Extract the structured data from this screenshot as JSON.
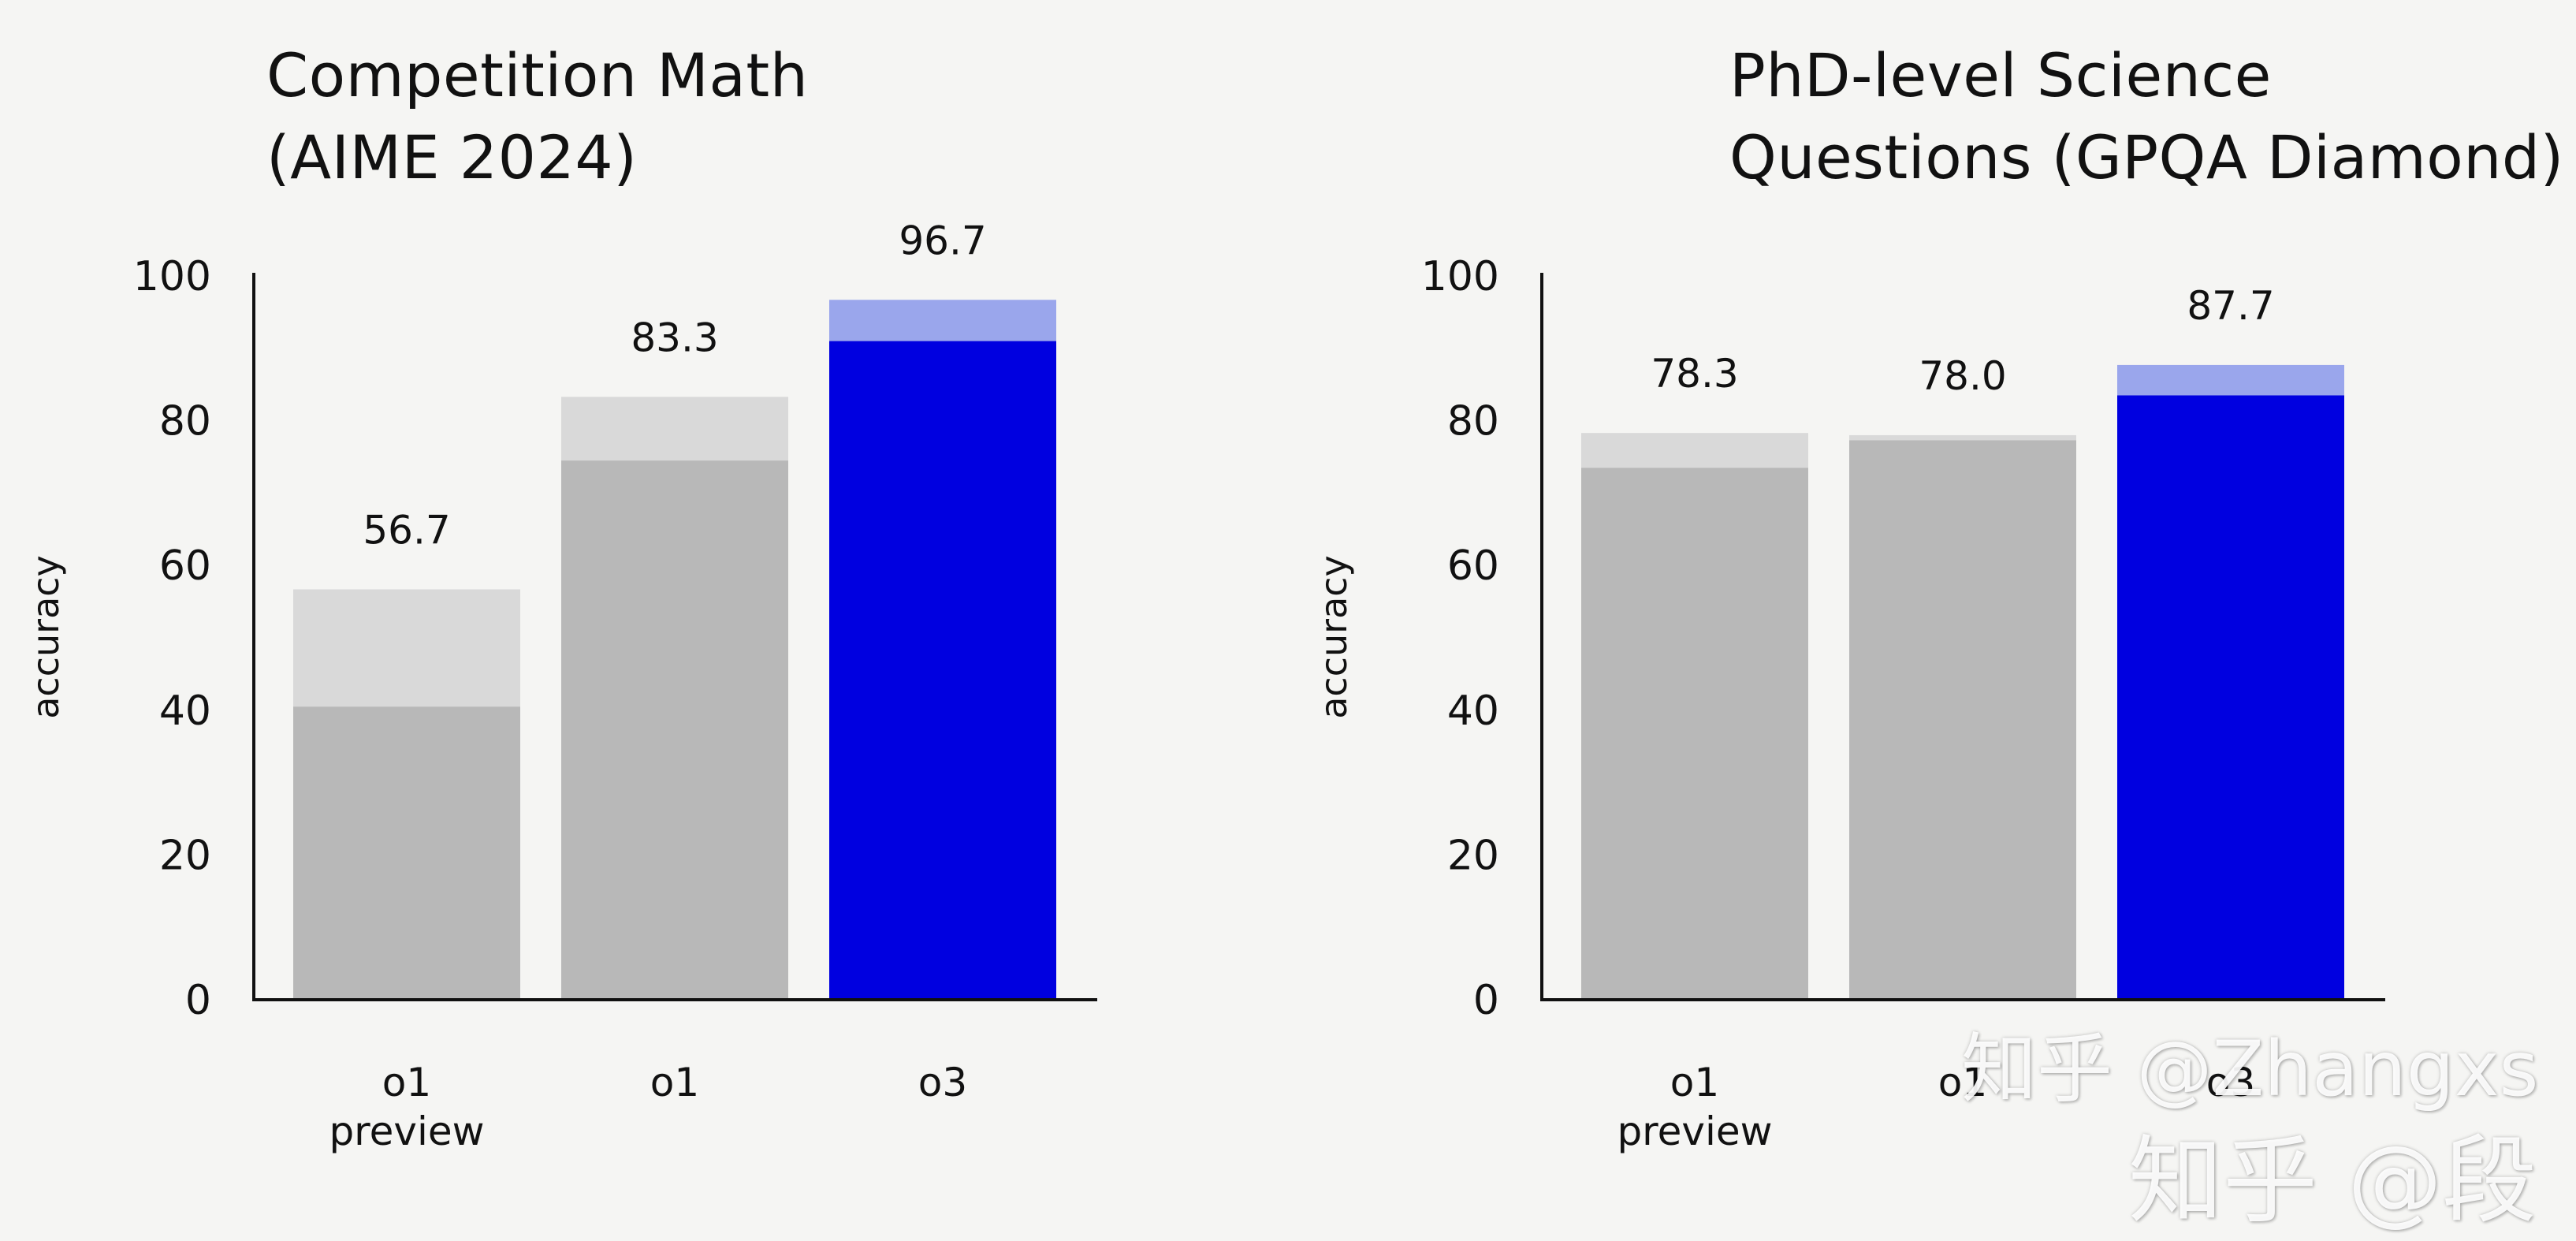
{
  "chart_data": [
    {
      "type": "bar",
      "title_lines": [
        "Competition Math",
        "(AIME 2024)"
      ],
      "ylabel": "accuracy",
      "ylim": [
        0,
        100
      ],
      "yticks": [
        0,
        20,
        40,
        60,
        80,
        100
      ],
      "categories": [
        [
          "o1",
          "preview"
        ],
        [
          "o1"
        ],
        [
          "o3"
        ]
      ],
      "values": [
        56.7,
        83.3,
        96.7
      ],
      "inner_values": [
        40.5,
        74.5,
        91
      ],
      "value_labels": [
        "56.7",
        "83.3",
        "96.7"
      ],
      "colors": {
        "gray_base": "#b8b8b8",
        "gray_top": "#d9d9d9",
        "blue_base": "#0000e0",
        "blue_top": "#9aa6ec"
      },
      "highlight_index": 2
    },
    {
      "type": "bar",
      "title_lines": [
        "PhD-level Science",
        "Questions (GPQA Diamond)"
      ],
      "ylabel": "accuracy",
      "ylim": [
        0,
        100
      ],
      "yticks": [
        0,
        20,
        40,
        60,
        80,
        100
      ],
      "categories": [
        [
          "o1",
          "preview"
        ],
        [
          "o1"
        ],
        [
          "o3"
        ]
      ],
      "values": [
        78.3,
        78.0,
        87.7
      ],
      "inner_values": [
        73.5,
        77.3,
        83.5
      ],
      "value_labels": [
        "78.3",
        "78.0",
        "87.7"
      ],
      "colors": {
        "gray_base": "#b8b8b8",
        "gray_top": "#d9d9d9",
        "blue_base": "#0000e0",
        "blue_top": "#9aa6ec"
      },
      "highlight_index": 2
    }
  ],
  "watermarks": [
    "知乎 @Zhangxs",
    "知乎 @段"
  ]
}
